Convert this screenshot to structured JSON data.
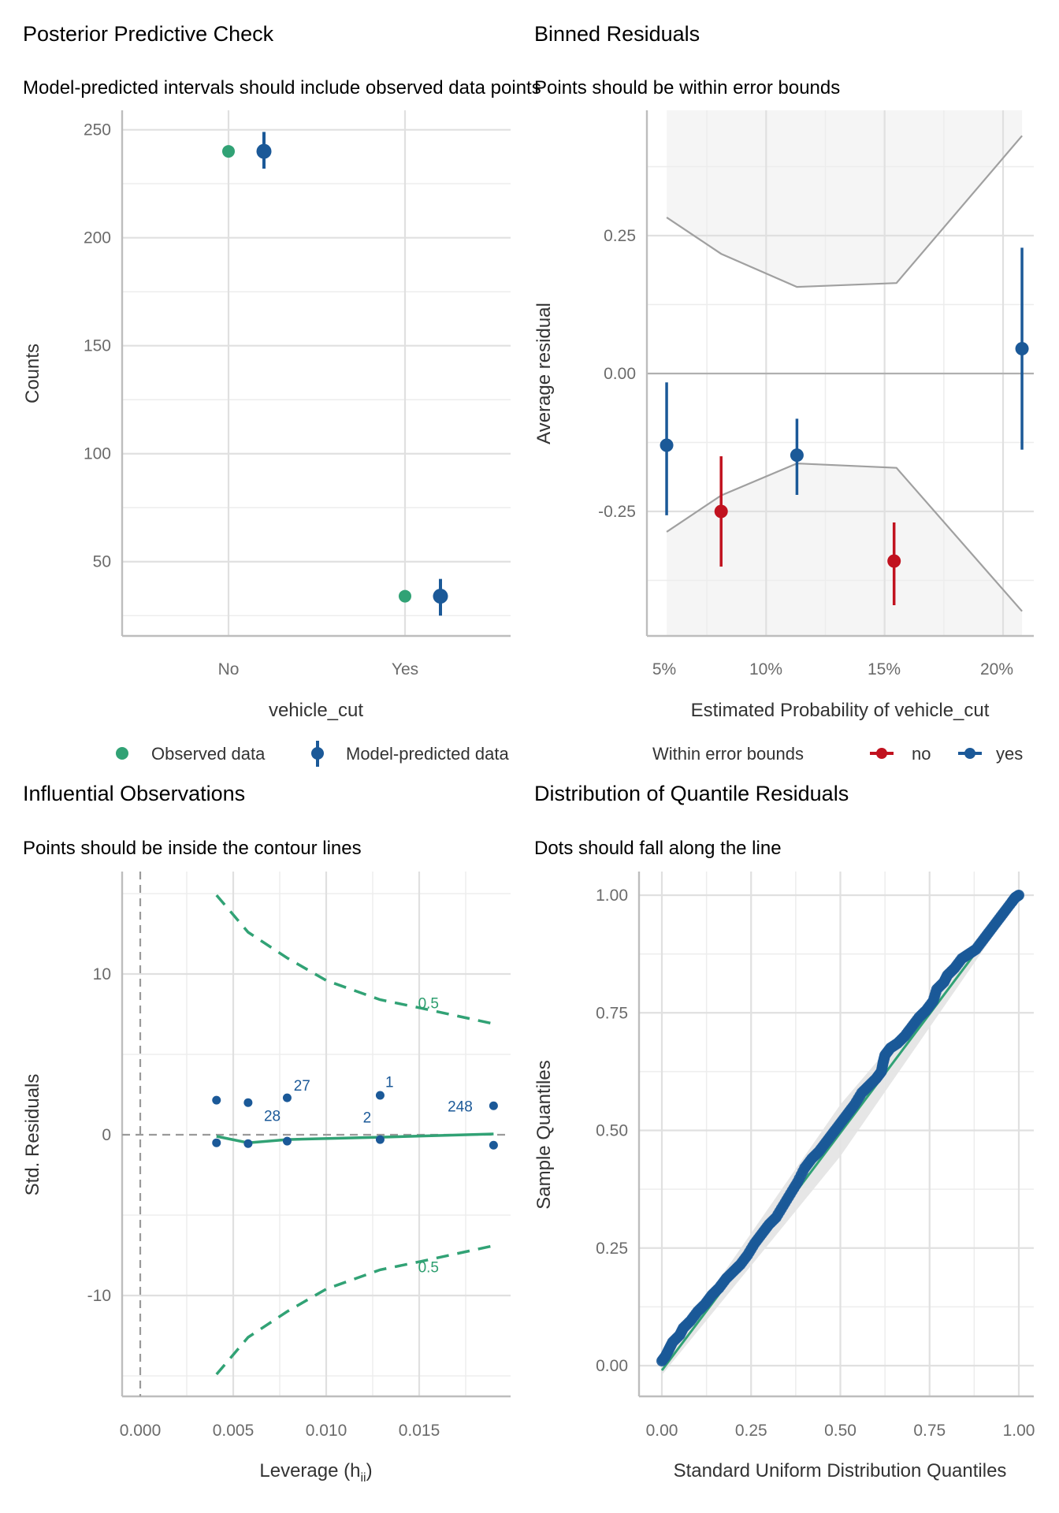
{
  "colors": {
    "observed": "#31a275",
    "predicted": "#1b5998",
    "outside": "#c1121f",
    "contour": "#31a275",
    "band": "#f5f5f5",
    "bound_line": "#a0a0a0",
    "grid_major": "#e0e0e0",
    "grid_minor": "#ededed",
    "axis": "#bdbdbd"
  },
  "chart_data": [
    {
      "id": "ppc",
      "type": "scatter",
      "title": "Posterior Predictive Check",
      "subtitle": "Model-predicted intervals should include observed data points",
      "xlabel": "vehicle_cut",
      "ylabel": "Counts",
      "categories": [
        "No",
        "Yes"
      ],
      "ylim": [
        15.6,
        259
      ],
      "yticks": [
        50,
        100,
        150,
        200,
        250
      ],
      "grid": true,
      "legend": {
        "position": "bottom",
        "items": [
          "Observed data",
          "Model-predicted data"
        ]
      },
      "series": [
        {
          "name": "Observed data",
          "values": [
            240,
            34
          ]
        },
        {
          "name": "Model-predicted data",
          "values": [
            240,
            34
          ],
          "lower": [
            232,
            25
          ],
          "upper": [
            249,
            42
          ]
        }
      ]
    },
    {
      "id": "binned",
      "type": "scatter",
      "title": "Binned Residuals",
      "subtitle": "Points should be within error bounds",
      "xlabel": "Estimated Probability of vehicle_cut",
      "ylabel": "Average residual",
      "xlim": [
        4.8,
        21.6
      ],
      "ylim": [
        -0.475,
        0.475
      ],
      "xticks": [
        5,
        10,
        15,
        20
      ],
      "xtick_labels": [
        "5%",
        "10%",
        "15%",
        "20%"
      ],
      "yticks": [
        0.25,
        0.0,
        -0.25
      ],
      "ytick_labels": [
        "0.25",
        "0.00",
        "-0.25"
      ],
      "grid": true,
      "legend": {
        "position": "bottom",
        "title": "Within error bounds",
        "items": [
          "no",
          "yes"
        ]
      },
      "bounds": {
        "x": [
          5.8,
          8.1,
          11.3,
          15.5,
          20.8
        ],
        "upper": [
          0.283,
          0.217,
          0.157,
          0.164,
          0.431
        ],
        "lower": [
          -0.287,
          -0.221,
          -0.163,
          -0.171,
          -0.431
        ]
      },
      "points": [
        {
          "x": 5.8,
          "y": -0.13,
          "lo": -0.257,
          "hi": -0.016,
          "within": "yes"
        },
        {
          "x": 8.1,
          "y": -0.25,
          "lo": -0.35,
          "hi": -0.15,
          "within": "no"
        },
        {
          "x": 11.3,
          "y": -0.148,
          "lo": -0.22,
          "hi": -0.082,
          "within": "yes"
        },
        {
          "x": 15.4,
          "y": -0.34,
          "lo": -0.42,
          "hi": -0.27,
          "within": "no"
        },
        {
          "x": 20.8,
          "y": 0.045,
          "lo": -0.138,
          "hi": 0.228,
          "within": "yes"
        }
      ]
    },
    {
      "id": "influence",
      "type": "scatter",
      "title": "Influential Observations",
      "subtitle": "Points should be inside the contour lines",
      "xlabel": "Leverage (h",
      "xlabel_sub": "ii",
      "xlabel_end": ")",
      "ylabel": "Std. Residuals",
      "xlim": [
        -0.001,
        0.0196
      ],
      "ylim": [
        -16.3,
        16.3
      ],
      "xticks": [
        0.0,
        0.005,
        0.01,
        0.015
      ],
      "xtick_labels": [
        "0.000",
        "0.005",
        "0.010",
        "0.015"
      ],
      "yticks": [
        10,
        0,
        -10
      ],
      "ytick_labels": [
        "10",
        "0",
        "-10"
      ],
      "grid": true,
      "points": [
        {
          "x": 0.0041,
          "y": 2.15
        },
        {
          "x": 0.0058,
          "y": 2.0
        },
        {
          "x": 0.0079,
          "y": 2.3
        },
        {
          "x": 0.0129,
          "y": 2.45
        },
        {
          "x": 0.019,
          "y": 1.8
        },
        {
          "x": 0.0041,
          "y": -0.5
        },
        {
          "x": 0.0058,
          "y": -0.55
        },
        {
          "x": 0.0079,
          "y": -0.4
        },
        {
          "x": 0.0129,
          "y": -0.3
        },
        {
          "x": 0.019,
          "y": -0.65
        }
      ],
      "point_labels": [
        {
          "text": "27",
          "x": 0.0087,
          "y": 3.1
        },
        {
          "text": "28",
          "x": 0.0071,
          "y": 1.2
        },
        {
          "text": "1",
          "x": 0.0134,
          "y": 3.3
        },
        {
          "text": "2",
          "x": 0.0122,
          "y": 1.1
        },
        {
          "text": "248",
          "x": 0.0172,
          "y": 1.8
        }
      ],
      "contour": {
        "level_label": "0.5",
        "x": [
          0.0041,
          0.0058,
          0.0079,
          0.01,
          0.0129,
          0.015,
          0.019
        ],
        "upper": [
          14.9,
          12.6,
          11.0,
          9.6,
          8.4,
          7.9,
          6.9
        ],
        "lower": [
          -14.9,
          -12.6,
          -11.0,
          -9.6,
          -8.4,
          -7.9,
          -6.9
        ],
        "label_pos": [
          {
            "x": 0.0155,
            "y": 8.2
          },
          {
            "x": 0.0155,
            "y": -8.2
          }
        ]
      },
      "loess": {
        "x": [
          0.0041,
          0.0058,
          0.0079,
          0.0129,
          0.019
        ],
        "y": [
          -0.1,
          -0.5,
          -0.3,
          -0.15,
          0.05
        ]
      }
    },
    {
      "id": "qq",
      "type": "scatter",
      "title": "Distribution of Quantile Residuals",
      "subtitle": "Dots should fall along the line",
      "xlabel": "Standard Uniform Distribution Quantiles",
      "ylabel": "Sample Quantiles",
      "xlim": [
        -0.05,
        1.05
      ],
      "ylim": [
        -0.07,
        1.05
      ],
      "xticks": [
        0.0,
        0.25,
        0.5,
        0.75,
        1.0
      ],
      "xtick_labels": [
        "0.00",
        "0.25",
        "0.50",
        "0.75",
        "1.00"
      ],
      "yticks": [
        0.0,
        0.25,
        0.5,
        0.75,
        1.0
      ],
      "ytick_labels": [
        "0.00",
        "0.25",
        "0.50",
        "0.75",
        "1.00"
      ],
      "grid": true,
      "reference_line": {
        "from": [
          0,
          -0.01
        ],
        "to": [
          1,
          1.0
        ]
      },
      "band_halfwidth": 0.055,
      "points": [
        [
          0.0,
          0.01
        ],
        [
          0.01,
          0.02
        ],
        [
          0.02,
          0.035
        ],
        [
          0.03,
          0.05
        ],
        [
          0.05,
          0.065
        ],
        [
          0.06,
          0.08
        ],
        [
          0.08,
          0.095
        ],
        [
          0.1,
          0.115
        ],
        [
          0.12,
          0.13
        ],
        [
          0.14,
          0.15
        ],
        [
          0.16,
          0.165
        ],
        [
          0.18,
          0.185
        ],
        [
          0.2,
          0.2
        ],
        [
          0.22,
          0.215
        ],
        [
          0.24,
          0.235
        ],
        [
          0.26,
          0.26
        ],
        [
          0.28,
          0.28
        ],
        [
          0.3,
          0.3
        ],
        [
          0.32,
          0.315
        ],
        [
          0.34,
          0.34
        ],
        [
          0.36,
          0.365
        ],
        [
          0.38,
          0.39
        ],
        [
          0.4,
          0.42
        ],
        [
          0.42,
          0.44
        ],
        [
          0.44,
          0.455
        ],
        [
          0.46,
          0.475
        ],
        [
          0.48,
          0.495
        ],
        [
          0.5,
          0.515
        ],
        [
          0.52,
          0.535
        ],
        [
          0.54,
          0.555
        ],
        [
          0.56,
          0.58
        ],
        [
          0.58,
          0.595
        ],
        [
          0.6,
          0.61
        ],
        [
          0.615,
          0.625
        ],
        [
          0.62,
          0.645
        ],
        [
          0.625,
          0.66
        ],
        [
          0.64,
          0.675
        ],
        [
          0.66,
          0.685
        ],
        [
          0.68,
          0.7
        ],
        [
          0.7,
          0.72
        ],
        [
          0.72,
          0.74
        ],
        [
          0.74,
          0.755
        ],
        [
          0.76,
          0.775
        ],
        [
          0.77,
          0.8
        ],
        [
          0.79,
          0.815
        ],
        [
          0.8,
          0.83
        ],
        [
          0.82,
          0.845
        ],
        [
          0.84,
          0.865
        ],
        [
          0.86,
          0.875
        ],
        [
          0.88,
          0.885
        ],
        [
          0.9,
          0.905
        ],
        [
          0.92,
          0.925
        ],
        [
          0.94,
          0.945
        ],
        [
          0.96,
          0.965
        ],
        [
          0.98,
          0.985
        ],
        [
          0.99,
          0.995
        ],
        [
          1.0,
          1.0
        ]
      ]
    }
  ]
}
